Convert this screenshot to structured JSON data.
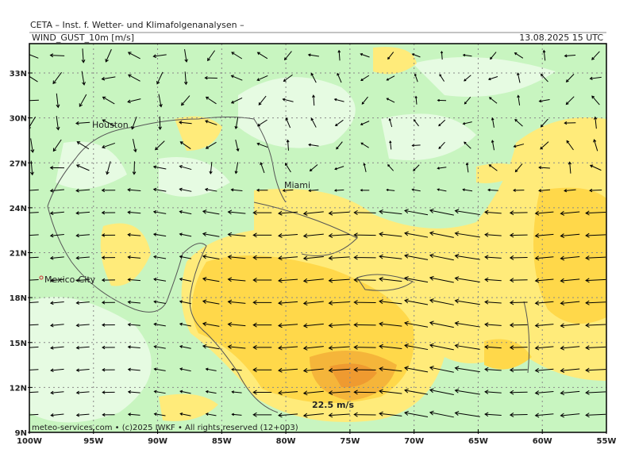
{
  "header": {
    "title": "CETA – Inst. f. Wetter- und Klimafolgenanalysen –",
    "field": "WIND_GUST_10m [m/s]",
    "valid": "13.08.2025 15 UTC"
  },
  "map": {
    "lat_labels": [
      "33N",
      "30N",
      "27N",
      "24N",
      "21N",
      "18N",
      "15N",
      "12N",
      "9N"
    ],
    "lon_labels": [
      "100W",
      "95W",
      "90W",
      "85W",
      "80W",
      "75W",
      "70W",
      "65W",
      "60W",
      "55W"
    ],
    "places": [
      {
        "label": "Houston"
      },
      {
        "label": "Miami"
      },
      {
        "label": "Mexico-City"
      }
    ],
    "annotation": "22.5 m/s",
    "footer": "meteo-services.com • (c)2025 IWKF • All rights reserved (12+003)"
  }
}
